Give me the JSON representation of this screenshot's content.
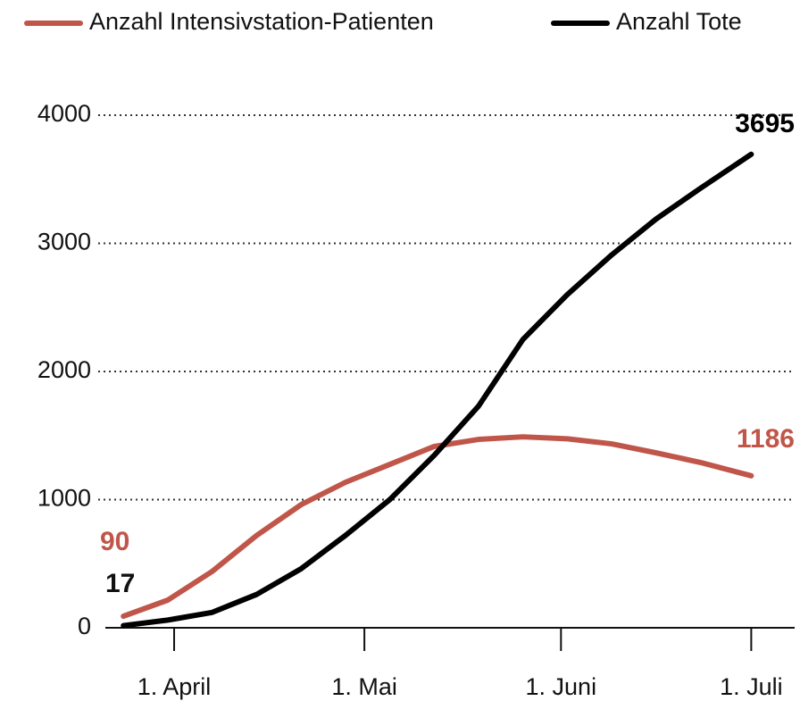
{
  "chart_data": {
    "type": "line",
    "x": [
      -8,
      -1,
      6,
      13,
      20,
      27,
      34,
      41,
      48,
      55,
      62,
      69,
      76,
      83,
      91
    ],
    "series": [
      {
        "name": "Anzahl Intensivstation-Patienten",
        "color": "#c0564a",
        "values": [
          90,
          216,
          440,
          720,
          960,
          1135,
          1275,
          1415,
          1470,
          1490,
          1475,
          1435,
          1365,
          1290,
          1186
        ]
      },
      {
        "name": "Anzahl Tote",
        "color": "#000000",
        "values": [
          17,
          60,
          120,
          260,
          460,
          720,
          1000,
          1345,
          1730,
          2250,
          2600,
          2910,
          3190,
          3430,
          3695
        ]
      }
    ],
    "xlim": [
      -10,
      97
    ],
    "xticks": [
      {
        "value": 0,
        "label": "1. April"
      },
      {
        "value": 30,
        "label": "1. Mai"
      },
      {
        "value": 61,
        "label": "1. Juni"
      },
      {
        "value": 91,
        "label": "1. Juli"
      }
    ],
    "ylim": [
      0,
      4000
    ],
    "yticks": [
      0,
      1000,
      2000,
      3000,
      4000
    ],
    "grid": true
  }
}
